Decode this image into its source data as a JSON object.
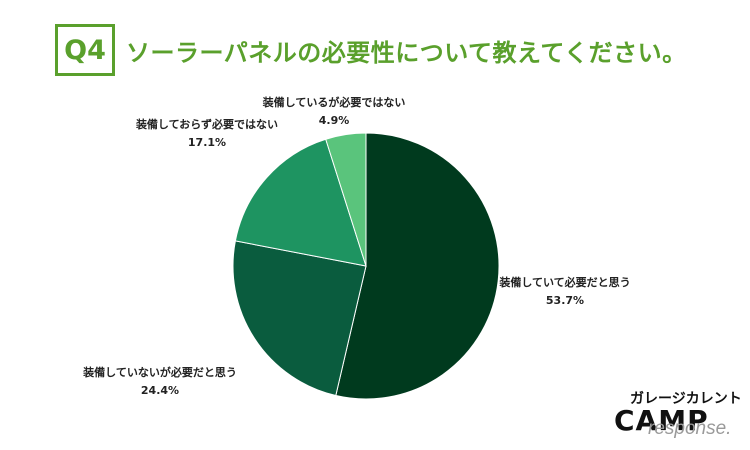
{
  "header": {
    "q_label": "Q4",
    "title": "ソーラーパネルの必要性について教えてください。"
  },
  "colors": {
    "accent": "#5aa02c"
  },
  "chart_data": {
    "type": "pie",
    "title": "ソーラーパネルの必要性について教えてください。",
    "slices": [
      {
        "label": "装備していて必要だと思う",
        "value": 53.7,
        "pct_text": "53.7%",
        "color": "#003a1e"
      },
      {
        "label": "装備していないが必要だと思う",
        "value": 24.4,
        "pct_text": "24.4%",
        "color": "#0a5c3e"
      },
      {
        "label": "装備しておらず必要ではない",
        "value": 17.1,
        "pct_text": "17.1%",
        "color": "#1e9461"
      },
      {
        "label": "装備しているが必要ではない",
        "value": 4.9,
        "pct_text": "4.9%",
        "color": "#5ac47c"
      }
    ],
    "start_angle": "top",
    "direction": "clockwise"
  },
  "logo": {
    "top": "ガレージカレント",
    "main": "CAMP",
    "watermark": "response."
  }
}
